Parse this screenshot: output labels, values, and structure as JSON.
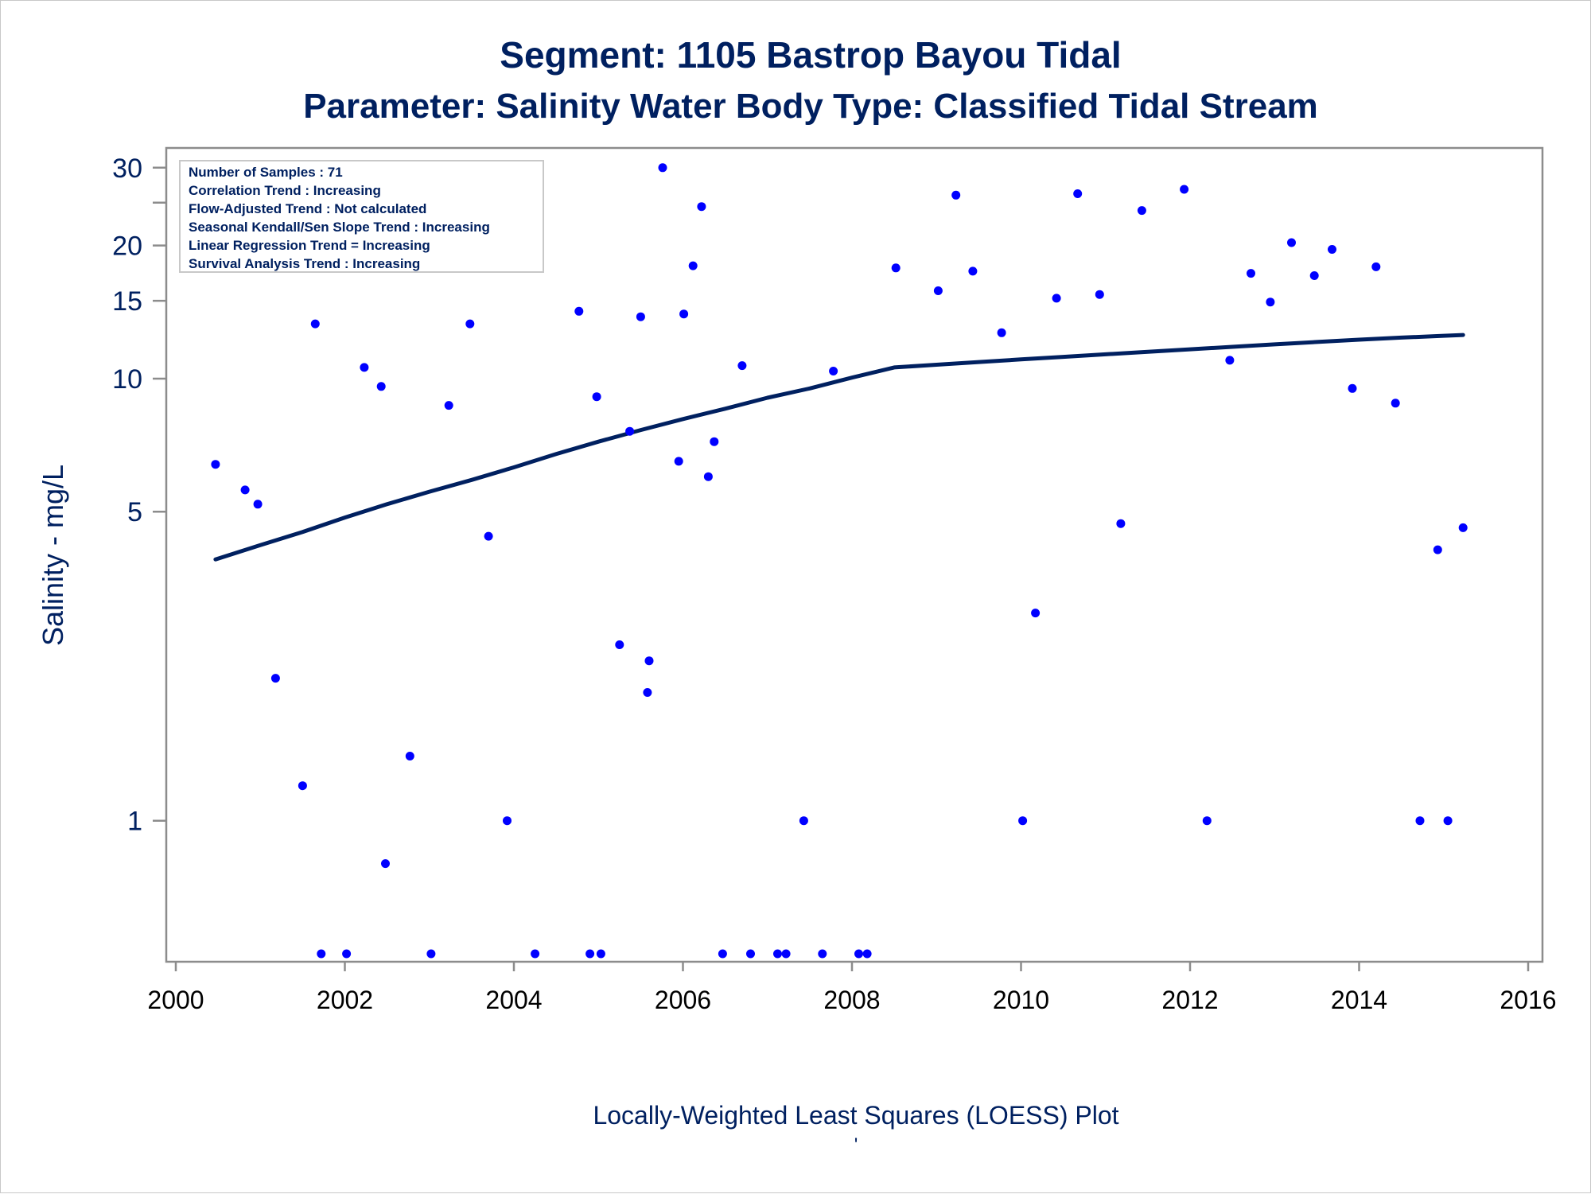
{
  "chart_data": {
    "type": "scatter",
    "title": "Segment: 1105  Bastrop Bayou Tidal",
    "subtitle": "Parameter: Salinity   Water Body Type: Classified Tidal Stream",
    "xlabel": "Locally-Weighted Least Squares (LOESS) Plot",
    "ylabel": "Salinity - mg/L",
    "footnote": "'",
    "x_scale": "linear",
    "y_scale": "log",
    "xlim": [
      2000,
      2016
    ],
    "ylim": [
      0.5,
      31.5
    ],
    "x_ticks": [
      "2000",
      "2002",
      "2004",
      "2006",
      "2008",
      "2010",
      "2012",
      "2014",
      "2016"
    ],
    "y_ticks": [
      {
        "value": 1,
        "label": "1"
      },
      {
        "value": 5,
        "label": "5"
      },
      {
        "value": 10,
        "label": "10"
      },
      {
        "value": 15,
        "label": "15"
      },
      {
        "value": 20,
        "label": "20"
      },
      {
        "value": 25,
        "label": ""
      },
      {
        "value": 30,
        "label": "30"
      }
    ],
    "grid": false,
    "legend_box": {
      "placement": "top-left",
      "lines": [
        "Number of Samples : 71",
        "Correlation Trend : Increasing",
        "Flow-Adjusted Trend : Not calculated",
        "Seasonal Kendall/Sen Slope Trend : Increasing",
        "Linear Regression Trend = Increasing",
        "Survival Analysis Trend : Increasing"
      ]
    },
    "colors": {
      "points": "#0000ff",
      "line": "#002060",
      "text": "#002060",
      "axis": "#8c8c8c"
    },
    "series": [
      {
        "type": "scatter",
        "points": [
          [
            2000.47,
            6.4
          ],
          [
            2000.82,
            5.6
          ],
          [
            2000.97,
            5.2
          ],
          [
            2001.18,
            2.1
          ],
          [
            2001.5,
            1.2
          ],
          [
            2001.65,
            13.3
          ],
          [
            2001.72,
            0.5
          ],
          [
            2002.02,
            0.5
          ],
          [
            2002.23,
            10.6
          ],
          [
            2002.43,
            9.6
          ],
          [
            2002.48,
            0.8
          ],
          [
            2002.77,
            1.4
          ],
          [
            2003.02,
            0.5
          ],
          [
            2003.23,
            8.7
          ],
          [
            2003.48,
            13.3
          ],
          [
            2003.7,
            4.4
          ],
          [
            2003.92,
            1.0
          ],
          [
            2004.25,
            0.5
          ],
          [
            2004.77,
            14.2
          ],
          [
            2004.9,
            0.5
          ],
          [
            2004.98,
            9.1
          ],
          [
            2005.03,
            0.5
          ],
          [
            2005.25,
            2.5
          ],
          [
            2005.37,
            7.6
          ],
          [
            2005.5,
            13.8
          ],
          [
            2005.58,
            1.95
          ],
          [
            2005.6,
            2.3
          ],
          [
            2005.76,
            30.0
          ],
          [
            2005.95,
            6.5
          ],
          [
            2006.01,
            14.0
          ],
          [
            2006.12,
            18.0
          ],
          [
            2006.22,
            24.5
          ],
          [
            2006.3,
            6.0
          ],
          [
            2006.37,
            7.2
          ],
          [
            2006.47,
            0.5
          ],
          [
            2006.7,
            10.7
          ],
          [
            2006.8,
            0.5
          ],
          [
            2007.12,
            0.5
          ],
          [
            2007.22,
            0.5
          ],
          [
            2007.43,
            1.0
          ],
          [
            2007.65,
            0.5
          ],
          [
            2007.78,
            10.4
          ],
          [
            2008.08,
            0.5
          ],
          [
            2008.18,
            0.5
          ],
          [
            2008.52,
            17.8
          ],
          [
            2009.02,
            15.8
          ],
          [
            2009.23,
            26.0
          ],
          [
            2009.43,
            17.5
          ],
          [
            2009.77,
            12.7
          ],
          [
            2010.02,
            1.0
          ],
          [
            2010.17,
            2.95
          ],
          [
            2010.42,
            15.2
          ],
          [
            2010.67,
            26.2
          ],
          [
            2010.93,
            15.5
          ],
          [
            2011.18,
            4.7
          ],
          [
            2011.43,
            24.0
          ],
          [
            2011.93,
            26.8
          ],
          [
            2012.2,
            1.0
          ],
          [
            2012.47,
            11.0
          ],
          [
            2012.72,
            17.3
          ],
          [
            2012.95,
            14.9
          ],
          [
            2013.2,
            20.3
          ],
          [
            2013.47,
            17.1
          ],
          [
            2013.68,
            19.6
          ],
          [
            2013.92,
            9.5
          ],
          [
            2014.2,
            17.9
          ],
          [
            2014.43,
            8.8
          ],
          [
            2014.72,
            1.0
          ],
          [
            2014.93,
            4.1
          ],
          [
            2015.05,
            1.0
          ],
          [
            2015.23,
            4.6
          ]
        ]
      },
      {
        "type": "line",
        "points": [
          [
            2000.47,
            3.9
          ],
          [
            2001.0,
            4.2
          ],
          [
            2001.5,
            4.5
          ],
          [
            2002.0,
            4.85
          ],
          [
            2002.5,
            5.2
          ],
          [
            2003.0,
            5.55
          ],
          [
            2003.5,
            5.9
          ],
          [
            2004.0,
            6.3
          ],
          [
            2004.5,
            6.75
          ],
          [
            2005.0,
            7.2
          ],
          [
            2005.5,
            7.65
          ],
          [
            2006.0,
            8.1
          ],
          [
            2006.5,
            8.55
          ],
          [
            2007.0,
            9.05
          ],
          [
            2007.5,
            9.5
          ],
          [
            2008.0,
            10.05
          ],
          [
            2008.5,
            10.6
          ],
          [
            2009.0,
            10.75
          ],
          [
            2009.5,
            10.9
          ],
          [
            2010.0,
            11.05
          ],
          [
            2010.5,
            11.2
          ],
          [
            2011.0,
            11.35
          ],
          [
            2011.5,
            11.5
          ],
          [
            2012.0,
            11.65
          ],
          [
            2012.5,
            11.8
          ],
          [
            2013.0,
            11.95
          ],
          [
            2013.5,
            12.1
          ],
          [
            2014.0,
            12.25
          ],
          [
            2014.5,
            12.38
          ],
          [
            2015.0,
            12.5
          ],
          [
            2015.23,
            12.55
          ]
        ]
      }
    ]
  }
}
